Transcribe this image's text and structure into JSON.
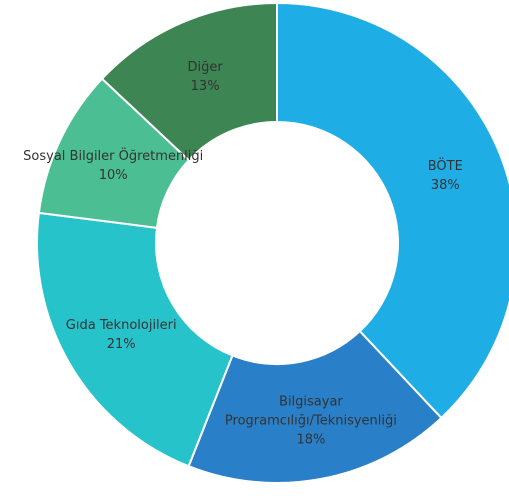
{
  "chart_data": {
    "type": "donut",
    "categories": [
      "BÖTE",
      "Bilgisayar Programcılığı/Teknisyenliği",
      "Gıda Teknolojileri",
      "Sosyal Bilgiler Öğretmenliği",
      "Diğer"
    ],
    "values": [
      38,
      18,
      21,
      10,
      13
    ],
    "value_labels": [
      "38%",
      "18%",
      "21%",
      "10%",
      "13%"
    ],
    "colors": [
      "#1fade6",
      "#2a80c8",
      "#27c3cb",
      "#4bbe93",
      "#3d8552"
    ]
  }
}
